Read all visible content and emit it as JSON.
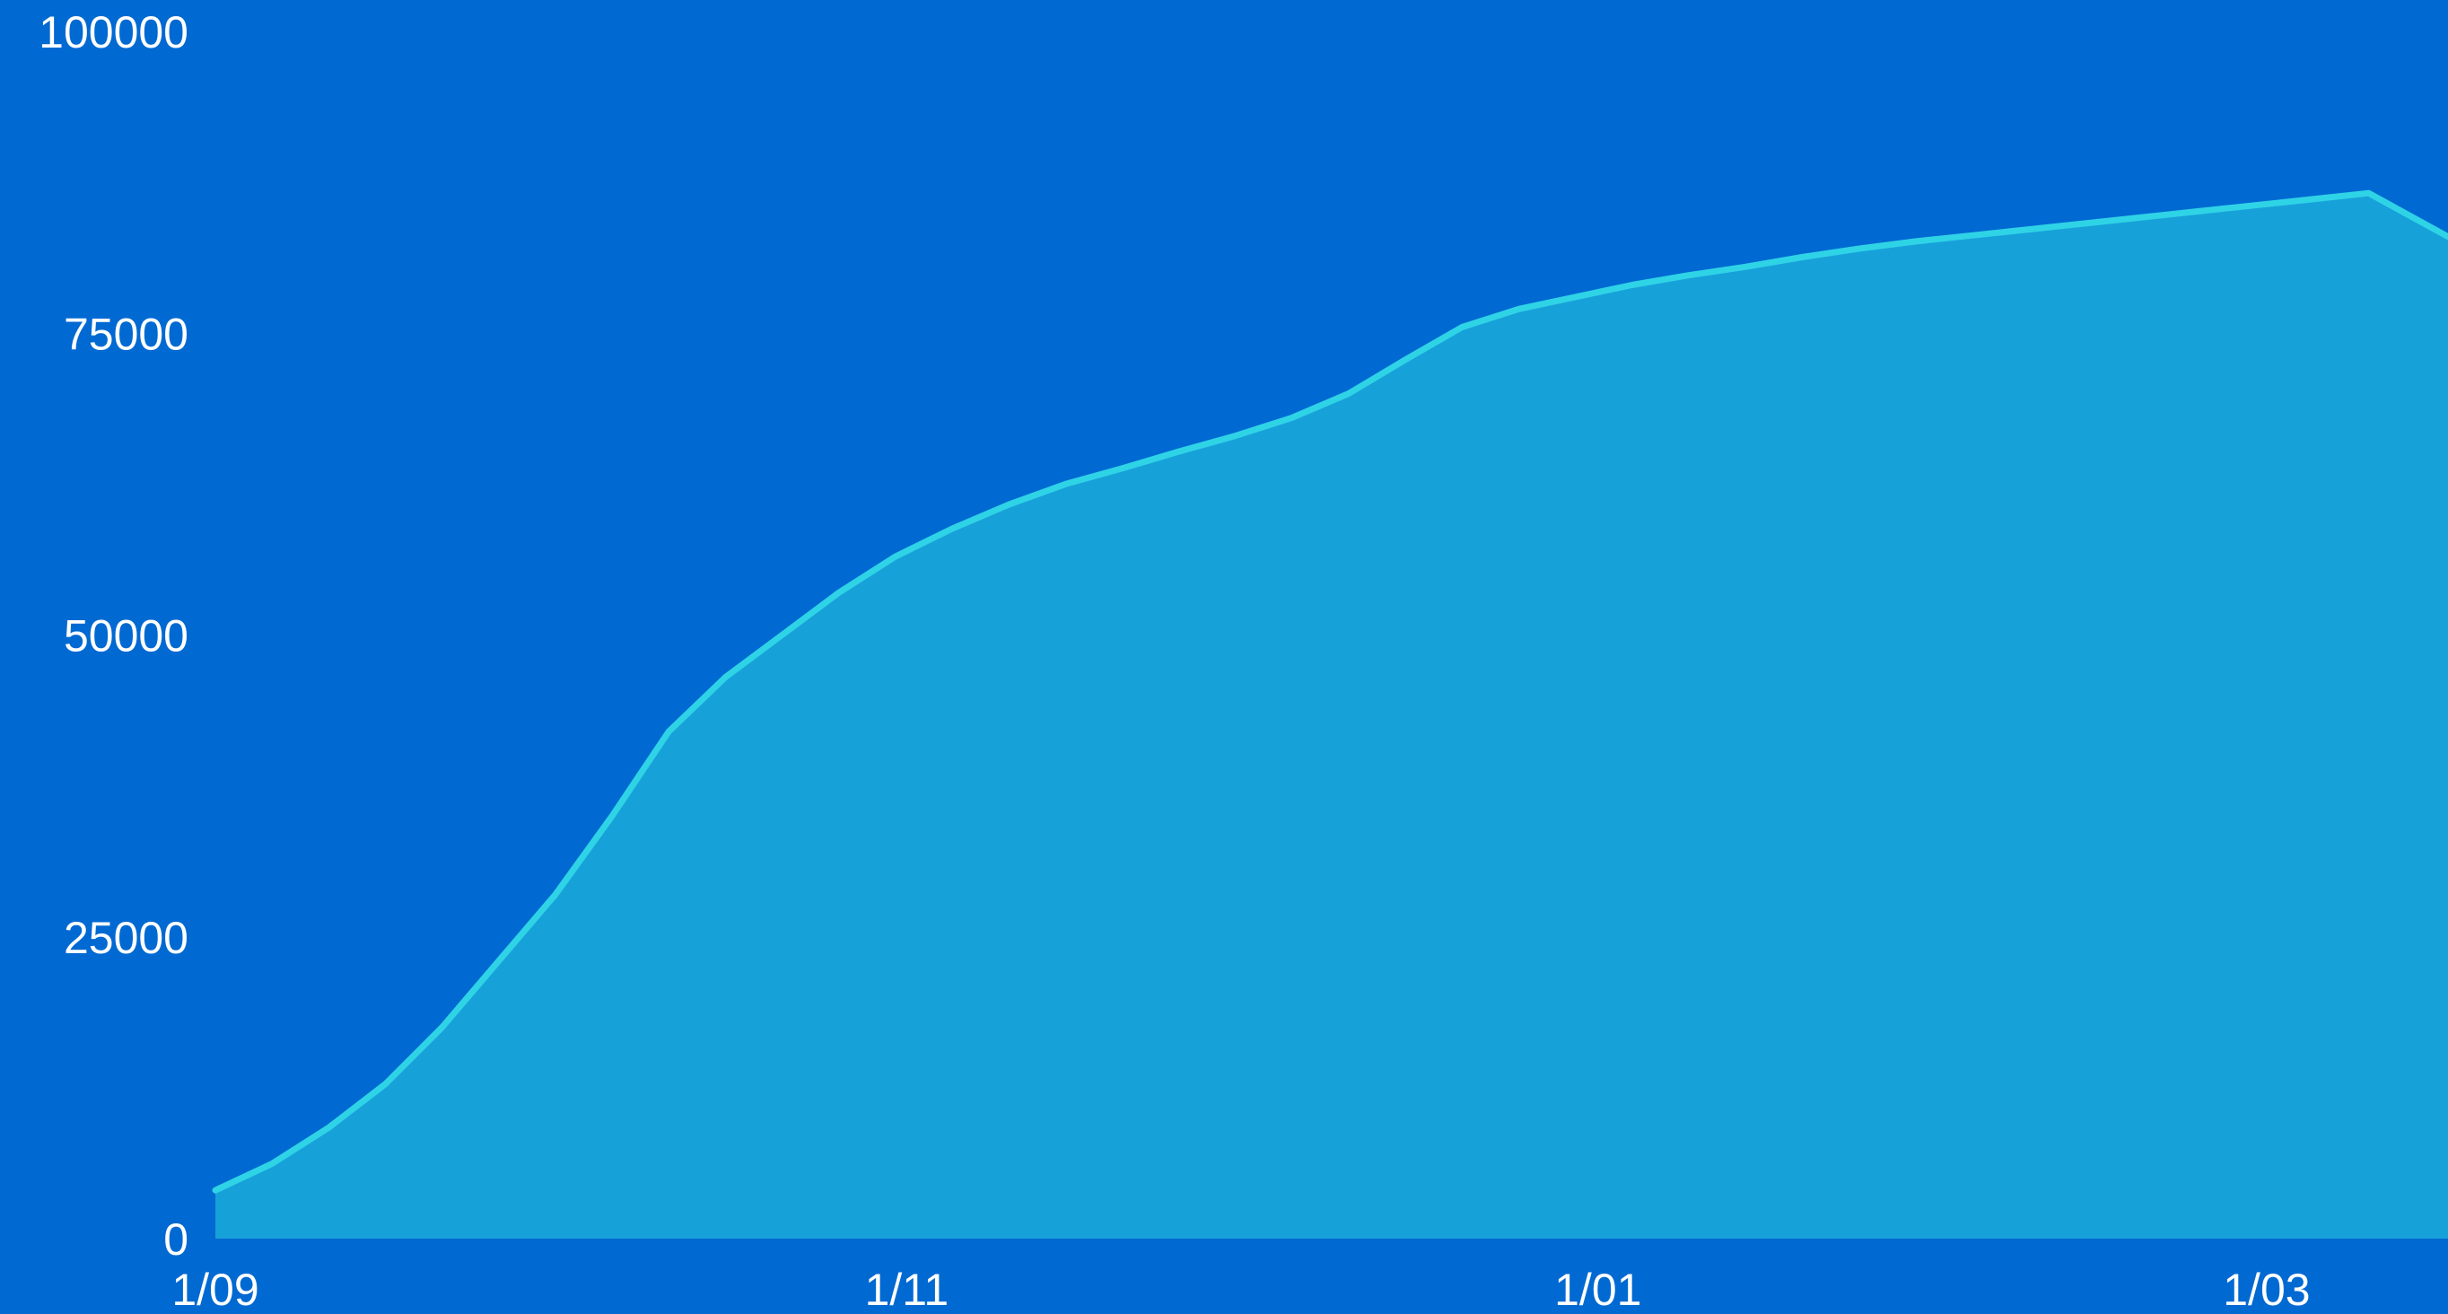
{
  "colors": {
    "background": "#0069d2",
    "area_fill": "#17a1d9",
    "line": "#2fd3e6",
    "text": "#ffffff"
  },
  "chart_data": {
    "type": "area",
    "title": "",
    "xlabel": "",
    "ylabel": "",
    "grid": false,
    "legend": "none",
    "x_ticks": [
      "1/09",
      "1/11",
      "1/01",
      "1/03"
    ],
    "y_ticks": [
      "0",
      "25000",
      "50000",
      "75000",
      "100000"
    ],
    "ylim": [
      0,
      100000
    ],
    "x_range_days": [
      0,
      197
    ],
    "series": [
      {
        "x": [
          0,
          5,
          10,
          15,
          20,
          25,
          30,
          35,
          40,
          45,
          50,
          55,
          60,
          65,
          70,
          75,
          80,
          85,
          90,
          95,
          100,
          105,
          110,
          115,
          120,
          125,
          130,
          135,
          140,
          145,
          150,
          155,
          160,
          165,
          170,
          175,
          180,
          185,
          190,
          197
        ],
        "y": [
          4000,
          6200,
          9200,
          12800,
          17500,
          23000,
          28500,
          35000,
          42000,
          46500,
          50000,
          53500,
          56500,
          58800,
          60800,
          62500,
          63800,
          65200,
          66500,
          68000,
          70000,
          72800,
          75500,
          77000,
          78000,
          79000,
          79800,
          80500,
          81300,
          82000,
          82600,
          83100,
          83600,
          84100,
          84600,
          85100,
          85600,
          86100,
          86600,
          83000
        ]
      }
    ]
  }
}
